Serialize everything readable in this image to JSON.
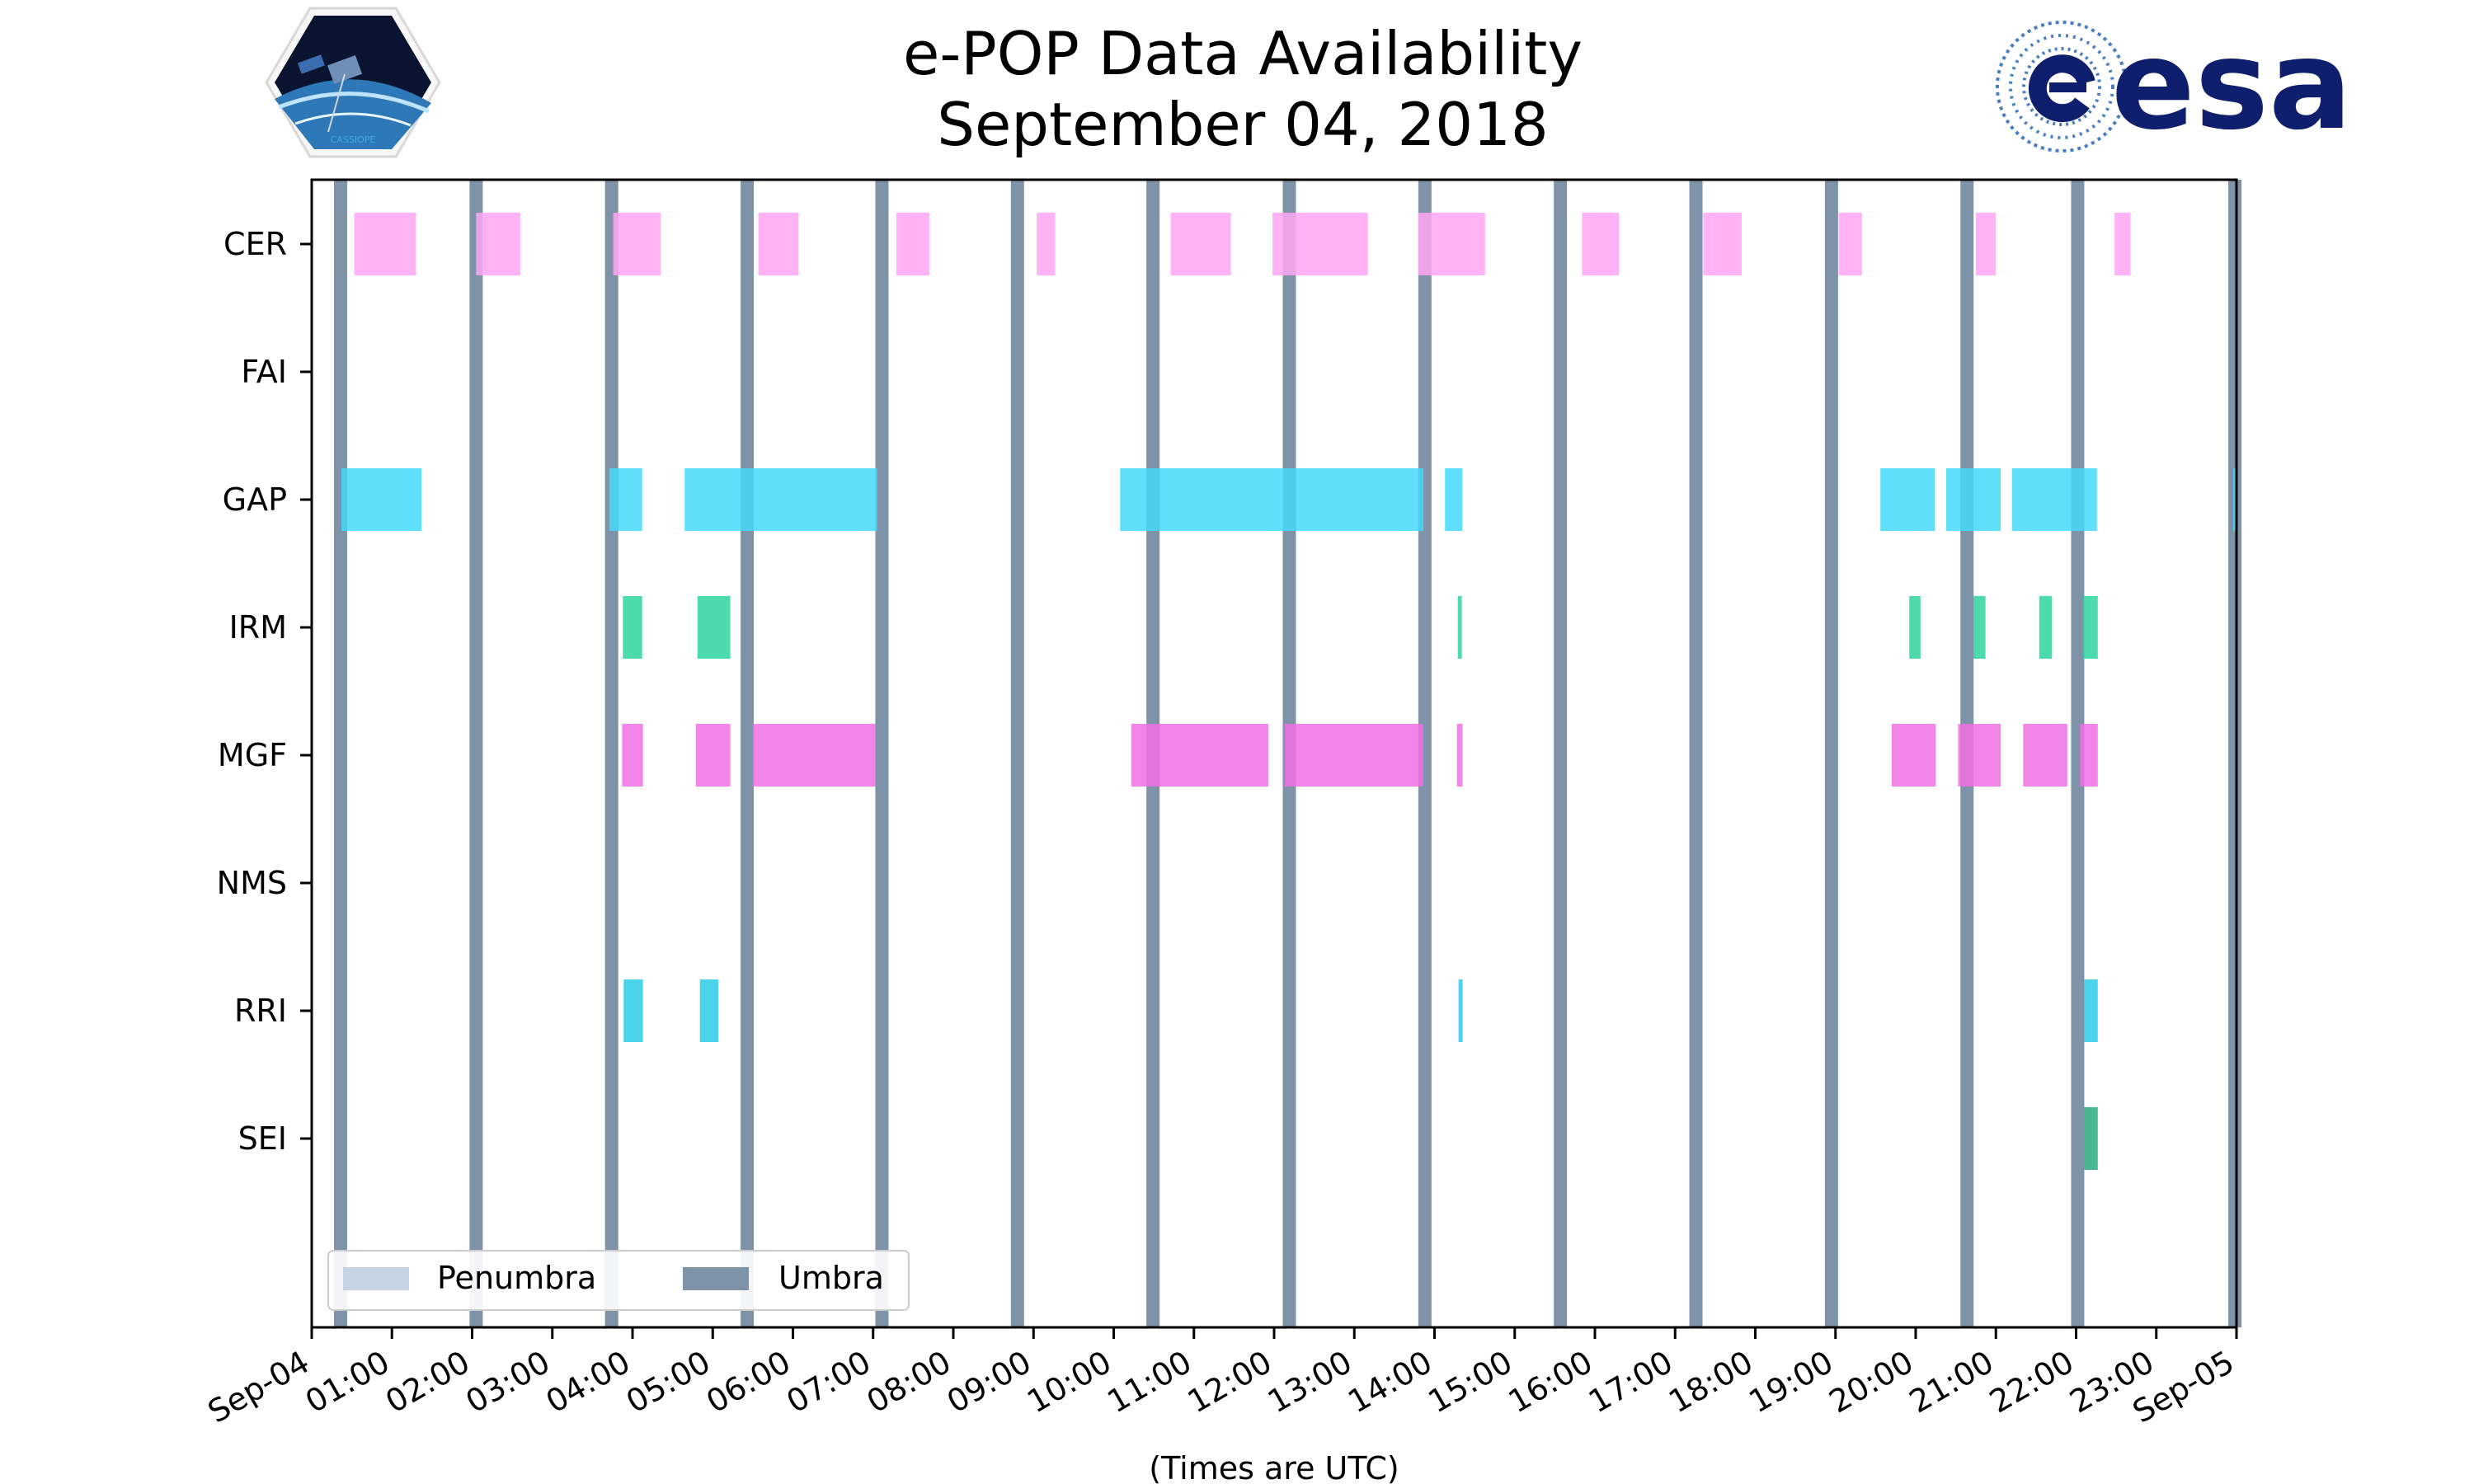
{
  "logos": {
    "left": {
      "name": "CASSIOPE",
      "color": "#3fa9e0"
    },
    "right": {
      "name": "esa",
      "color": "#0f1f6e"
    }
  },
  "chart_data": {
    "type": "timeline",
    "title": "e-POP Data Availability",
    "subtitle": "September 04, 2018",
    "xlabel": "(Times are UTC)",
    "xlim_hours": [
      0,
      24
    ],
    "x_tick_labels": [
      "Sep-04",
      "01:00",
      "02:00",
      "03:00",
      "04:00",
      "05:00",
      "06:00",
      "07:00",
      "08:00",
      "09:00",
      "10:00",
      "11:00",
      "12:00",
      "13:00",
      "14:00",
      "15:00",
      "16:00",
      "17:00",
      "18:00",
      "19:00",
      "20:00",
      "21:00",
      "22:00",
      "23:00",
      "Sep-05"
    ],
    "instruments": [
      "CER",
      "FAI",
      "GAP",
      "IRM",
      "MGF",
      "NMS",
      "RRI",
      "SEI"
    ],
    "legend": [
      {
        "label": "Penumbra",
        "color": "#c5d3e3"
      },
      {
        "label": "Umbra",
        "color": "#7f93a8"
      }
    ],
    "legend_position": "lower-left",
    "umbra_hours": [
      0.36,
      2.05,
      3.74,
      5.43,
      7.11,
      8.8,
      10.49,
      12.19,
      13.88,
      15.57,
      17.26,
      18.95,
      20.64,
      22.02,
      23.98
    ],
    "series": [
      {
        "name": "CER",
        "color": "#ffa6f3",
        "intervals": [
          [
            0.53,
            1.3
          ],
          [
            2.05,
            2.6
          ],
          [
            3.76,
            4.35
          ],
          [
            5.57,
            6.07
          ],
          [
            7.29,
            7.7
          ],
          [
            9.04,
            9.27
          ],
          [
            10.71,
            11.46
          ],
          [
            11.98,
            13.17
          ],
          [
            13.8,
            14.63
          ],
          [
            15.84,
            16.3
          ],
          [
            17.35,
            17.83
          ],
          [
            19.04,
            19.33
          ],
          [
            20.75,
            21.0
          ],
          [
            22.48,
            22.68
          ]
        ]
      },
      {
        "name": "FAI",
        "color": "#5ab0ff",
        "intervals": []
      },
      {
        "name": "GAP",
        "color": "#45d8f8",
        "intervals": [
          [
            0.37,
            1.37
          ],
          [
            3.71,
            4.12
          ],
          [
            4.65,
            7.05
          ],
          [
            10.08,
            13.86
          ],
          [
            14.13,
            14.35
          ],
          [
            19.56,
            20.24
          ],
          [
            20.38,
            21.06
          ],
          [
            21.2,
            22.26
          ],
          [
            23.96,
            24.0
          ]
        ]
      },
      {
        "name": "IRM",
        "color": "#2ed39d",
        "intervals": [
          [
            3.88,
            4.12
          ],
          [
            4.81,
            5.22
          ],
          [
            14.29,
            14.34
          ],
          [
            19.92,
            20.06
          ],
          [
            20.72,
            20.87
          ],
          [
            21.54,
            21.7
          ],
          [
            22.09,
            22.27
          ]
        ]
      },
      {
        "name": "MGF",
        "color": "#f06fe4",
        "intervals": [
          [
            3.87,
            4.13
          ],
          [
            4.79,
            5.22
          ],
          [
            5.5,
            7.03
          ],
          [
            10.22,
            11.93
          ],
          [
            12.13,
            13.86
          ],
          [
            14.28,
            14.35
          ],
          [
            19.7,
            20.25
          ],
          [
            20.53,
            21.06
          ],
          [
            21.34,
            21.89
          ],
          [
            22.05,
            22.27
          ]
        ]
      },
      {
        "name": "NMS",
        "color": "#888888",
        "intervals": []
      },
      {
        "name": "RRI",
        "color": "#2ccbe8",
        "intervals": [
          [
            3.89,
            4.13
          ],
          [
            4.84,
            5.07
          ],
          [
            14.3,
            14.35
          ],
          [
            22.1,
            22.27
          ]
        ]
      },
      {
        "name": "SEI",
        "color": "#2aa87e",
        "intervals": [
          [
            22.1,
            22.27
          ]
        ]
      }
    ]
  }
}
